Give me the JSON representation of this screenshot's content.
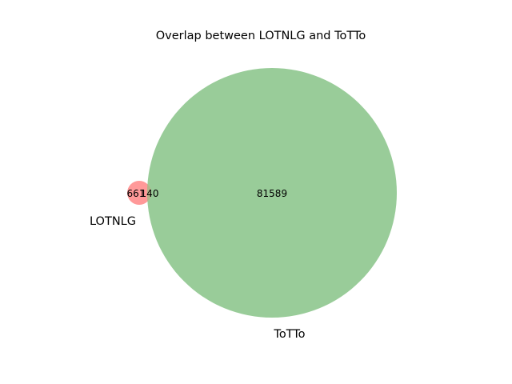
{
  "title": "Overlap between LOTNLG and ToTTo",
  "colors": {
    "set_a": "#ff9999",
    "set_b": "#99cc99",
    "overlap": "#b3b48a",
    "text": "#000000",
    "background": "#ffffff"
  },
  "sets": {
    "a": {
      "label": "LOTNLG",
      "only_count": "661"
    },
    "b": {
      "label": "ToTTo",
      "only_count": "81589"
    },
    "intersection": {
      "count": "140"
    }
  }
}
